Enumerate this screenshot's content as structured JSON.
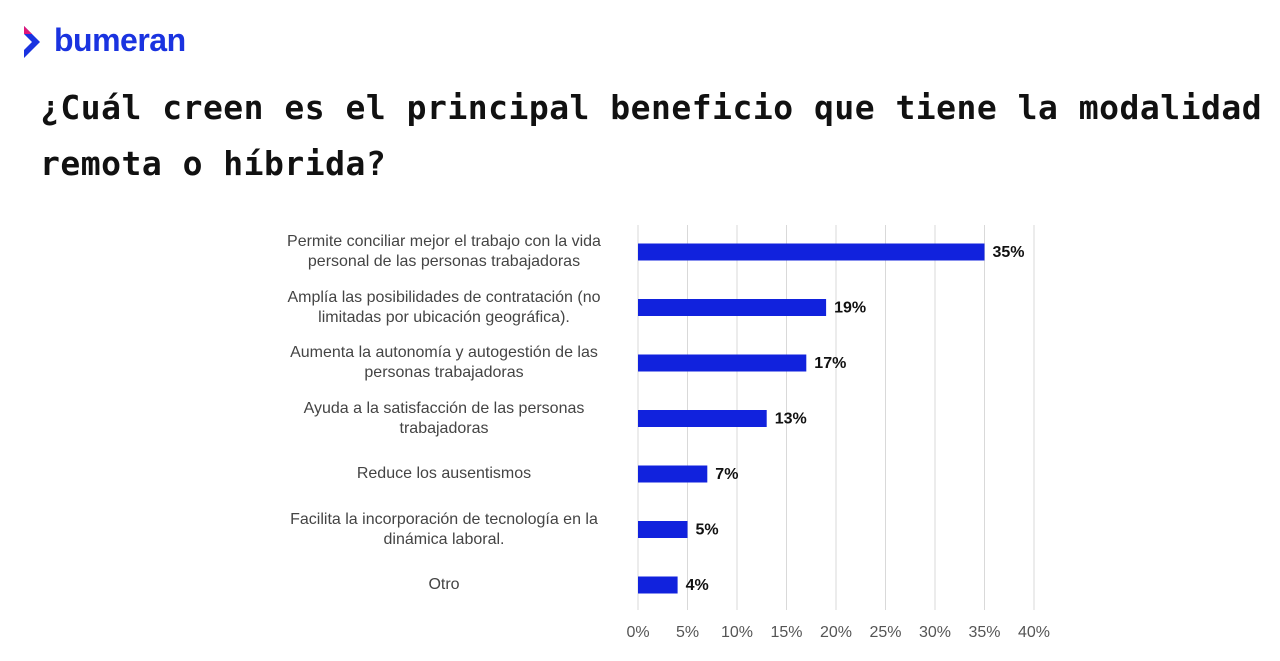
{
  "brand": "bumeran",
  "chart_data": {
    "type": "hbar",
    "title": "¿Cuál creen es el principal beneficio que tiene la modalidad remota o híbrida?",
    "categories": [
      "Permite conciliar mejor el trabajo con la vida personal de las personas trabajadoras",
      "Amplía las posibilidades de contratación (no limitadas por ubicación geográfica).",
      "Aumenta la autonomía y autogestión de las personas trabajadoras",
      "Ayuda a la satisfacción de las personas trabajadoras",
      "Reduce los ausentismos",
      "Facilita la incorporación de tecnología en la dinámica laboral.",
      "Otro"
    ],
    "values": [
      35,
      19,
      17,
      13,
      7,
      5,
      4
    ],
    "value_labels": [
      "35%",
      "19%",
      "17%",
      "13%",
      "7%",
      "5%",
      "4%"
    ],
    "color": "#1122dd",
    "xlim": [
      0,
      40
    ],
    "xticks": [
      {
        "value": 0,
        "label": "0%"
      },
      {
        "value": 5,
        "label": "5%"
      },
      {
        "value": 10,
        "label": "10%"
      },
      {
        "value": 15,
        "label": "15%"
      },
      {
        "value": 20,
        "label": "20%"
      },
      {
        "value": 25,
        "label": "25%"
      },
      {
        "value": 30,
        "label": "30%"
      },
      {
        "value": 35,
        "label": "35%"
      },
      {
        "value": 40,
        "label": "40%"
      }
    ],
    "grid": true
  }
}
